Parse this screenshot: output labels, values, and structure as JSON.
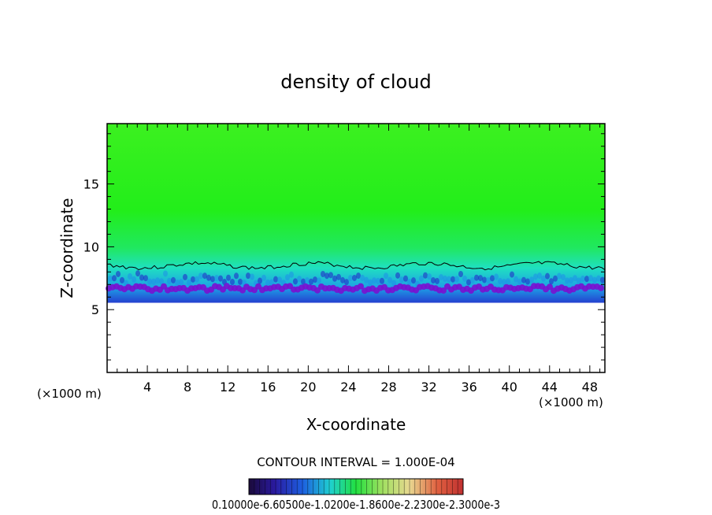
{
  "chart_data": {
    "type": "heatmap",
    "title": "density of cloud",
    "xlabel": "X-coordinate",
    "ylabel": "Z-coordinate",
    "x_unit": "(×1000 m)",
    "z_unit": "(×1000 m)",
    "xlim": [
      0,
      49.5
    ],
    "ylim": [
      0,
      19.8
    ],
    "xticks": [
      4,
      8,
      12,
      16,
      20,
      24,
      28,
      32,
      36,
      40,
      44,
      48
    ],
    "yticks": [
      5,
      10,
      15
    ],
    "contour_interval": "CONTOUR INTERVAL = 1.000E-04",
    "colorbar_labels": "0.10000e-6.60500e-1.0200e-1.8600e-2.2300e-2.3000e-3",
    "field": {
      "cloud_base_km": 6.5,
      "transition_km": 8.5,
      "background": "#22ee1a",
      "low_band_colors": [
        "#7a0fd0",
        "#2020c8",
        "#1d8fe8",
        "#1fe0c8",
        "#22ee1a"
      ]
    }
  }
}
